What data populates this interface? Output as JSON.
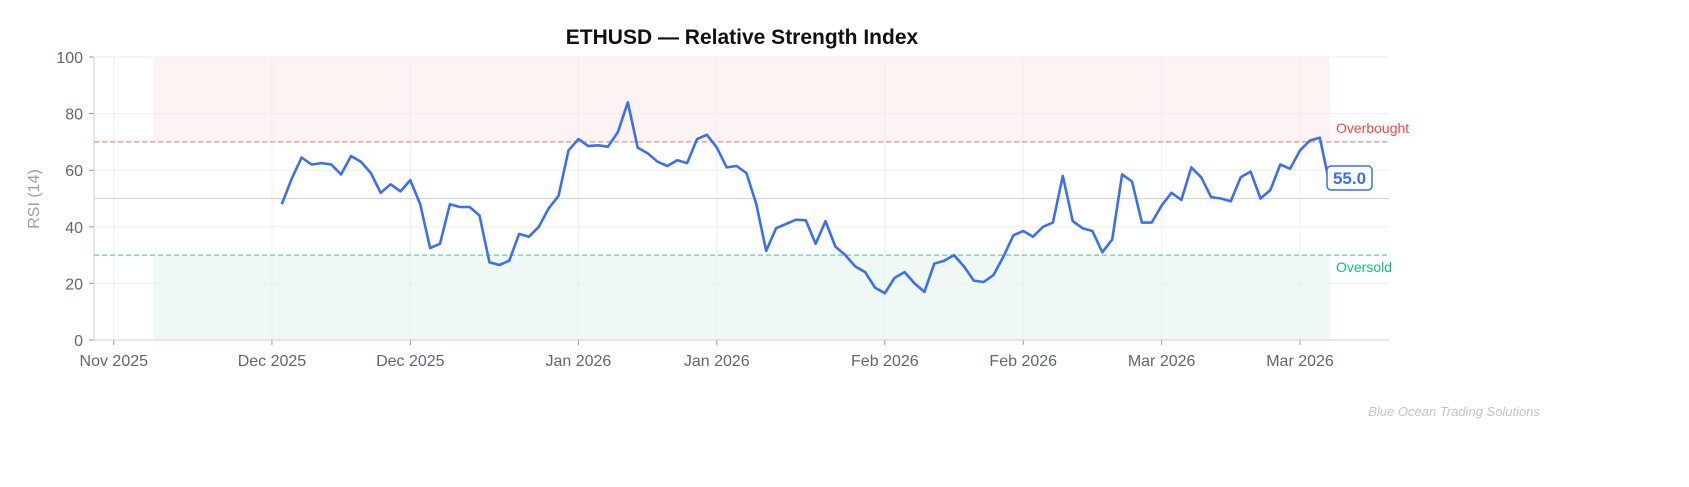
{
  "chart_data": {
    "type": "line",
    "title": "ETHUSD — Relative Strength Index",
    "ylabel": "RSI (14)",
    "xlabel": "",
    "ylim": [
      0,
      100
    ],
    "xlim": [
      "2025-11-13",
      "2026-03-24"
    ],
    "yticks": [
      0,
      20,
      40,
      60,
      80,
      100
    ],
    "xticks": [
      {
        "date": "2025-11-15",
        "label": "Nov 2025"
      },
      {
        "date": "2025-12-01",
        "label": "Dec 2025"
      },
      {
        "date": "2025-12-15",
        "label": "Dec 2025"
      },
      {
        "date": "2026-01-01",
        "label": "Jan 2026"
      },
      {
        "date": "2026-01-15",
        "label": "Jan 2026"
      },
      {
        "date": "2026-02-01",
        "label": "Feb 2026"
      },
      {
        "date": "2026-02-15",
        "label": "Feb 2026"
      },
      {
        "date": "2026-03-01",
        "label": "Mar 2026"
      },
      {
        "date": "2026-03-15",
        "label": "Mar 2026"
      }
    ],
    "grid": true,
    "zones": {
      "overbought": {
        "level": 70,
        "label": "Overbought",
        "color": "#f08080",
        "from": 70,
        "to": 100
      },
      "oversold": {
        "level": 30,
        "label": "Oversold",
        "color": "#10b981",
        "from": 0,
        "to": 30
      },
      "midline": 50,
      "span": [
        "2025-11-19",
        "2026-03-18"
      ]
    },
    "series": [
      {
        "color": "#3b6ff0",
        "points": [
          [
            "2025-12-02",
            48
          ],
          [
            "2025-12-03",
            57
          ],
          [
            "2025-12-04",
            64.5
          ],
          [
            "2025-12-05",
            62
          ],
          [
            "2025-12-06",
            62.5
          ],
          [
            "2025-12-07",
            62
          ],
          [
            "2025-12-08",
            58.5
          ],
          [
            "2025-12-09",
            65
          ],
          [
            "2025-12-10",
            63
          ],
          [
            "2025-12-11",
            59
          ],
          [
            "2025-12-12",
            52
          ],
          [
            "2025-12-13",
            55
          ],
          [
            "2025-12-14",
            52.5
          ],
          [
            "2025-12-15",
            56.5
          ],
          [
            "2025-12-16",
            48
          ],
          [
            "2025-12-17",
            32.5
          ],
          [
            "2025-12-18",
            34
          ],
          [
            "2025-12-19",
            48
          ],
          [
            "2025-12-20",
            47
          ],
          [
            "2025-12-21",
            47
          ],
          [
            "2025-12-22",
            44
          ],
          [
            "2025-12-23",
            27.5
          ],
          [
            "2025-12-24",
            26.5
          ],
          [
            "2025-12-25",
            28
          ],
          [
            "2025-12-26",
            37.5
          ],
          [
            "2025-12-27",
            36.5
          ],
          [
            "2025-12-28",
            40
          ],
          [
            "2025-12-29",
            46.5
          ],
          [
            "2025-12-30",
            51
          ],
          [
            "2025-12-31",
            67
          ],
          [
            "2026-01-01",
            71
          ],
          [
            "2026-01-02",
            68.5
          ],
          [
            "2026-01-03",
            68.8
          ],
          [
            "2026-01-04",
            68.3
          ],
          [
            "2026-01-05",
            73.5
          ],
          [
            "2026-01-06",
            84
          ],
          [
            "2026-01-07",
            68
          ],
          [
            "2026-01-08",
            66
          ],
          [
            "2026-01-09",
            63
          ],
          [
            "2026-01-10",
            61.5
          ],
          [
            "2026-01-11",
            63.5
          ],
          [
            "2026-01-12",
            62.5
          ],
          [
            "2026-01-13",
            71
          ],
          [
            "2026-01-14",
            72.5
          ],
          [
            "2026-01-15",
            68
          ],
          [
            "2026-01-16",
            61
          ],
          [
            "2026-01-17",
            61.5
          ],
          [
            "2026-01-18",
            59
          ],
          [
            "2026-01-19",
            48
          ],
          [
            "2026-01-20",
            31.5
          ],
          [
            "2026-01-21",
            39.5
          ],
          [
            "2026-01-22",
            41
          ],
          [
            "2026-01-23",
            42.5
          ],
          [
            "2026-01-24",
            42.3
          ],
          [
            "2026-01-25",
            34
          ],
          [
            "2026-01-26",
            42
          ],
          [
            "2026-01-27",
            33
          ],
          [
            "2026-01-28",
            30
          ],
          [
            "2026-01-29",
            26
          ],
          [
            "2026-01-30",
            24
          ],
          [
            "2026-01-31",
            18.5
          ],
          [
            "2026-02-01",
            16.5
          ],
          [
            "2026-02-02",
            22
          ],
          [
            "2026-02-03",
            24
          ],
          [
            "2026-02-04",
            20
          ],
          [
            "2026-02-05",
            17
          ],
          [
            "2026-02-06",
            27
          ],
          [
            "2026-02-07",
            28
          ],
          [
            "2026-02-08",
            30
          ],
          [
            "2026-02-09",
            26
          ],
          [
            "2026-02-10",
            21
          ],
          [
            "2026-02-11",
            20.5
          ],
          [
            "2026-02-12",
            23
          ],
          [
            "2026-02-13",
            29.5
          ],
          [
            "2026-02-14",
            37
          ],
          [
            "2026-02-15",
            38.5
          ],
          [
            "2026-02-16",
            36.5
          ],
          [
            "2026-02-17",
            40
          ],
          [
            "2026-02-18",
            41.5
          ],
          [
            "2026-02-19",
            58
          ],
          [
            "2026-02-20",
            42
          ],
          [
            "2026-02-21",
            39.5
          ],
          [
            "2026-02-22",
            38.5
          ],
          [
            "2026-02-23",
            31
          ],
          [
            "2026-02-24",
            35.5
          ],
          [
            "2026-02-25",
            58.5
          ],
          [
            "2026-02-26",
            56
          ],
          [
            "2026-02-27",
            41.5
          ],
          [
            "2026-02-28",
            41.5
          ],
          [
            "2026-03-01",
            47.5
          ],
          [
            "2026-03-02",
            52
          ],
          [
            "2026-03-03",
            49.5
          ],
          [
            "2026-03-04",
            61
          ],
          [
            "2026-03-05",
            57.5
          ],
          [
            "2026-03-06",
            50.5
          ],
          [
            "2026-03-07",
            50
          ],
          [
            "2026-03-08",
            49
          ],
          [
            "2026-03-09",
            57.5
          ],
          [
            "2026-03-10",
            59.5
          ],
          [
            "2026-03-11",
            50
          ],
          [
            "2026-03-12",
            53
          ],
          [
            "2026-03-13",
            62
          ],
          [
            "2026-03-14",
            60.5
          ],
          [
            "2026-03-15",
            67
          ],
          [
            "2026-03-16",
            70.5
          ],
          [
            "2026-03-17",
            71.5
          ],
          [
            "2026-03-18",
            55
          ]
        ]
      }
    ],
    "last_value_label": "55.0",
    "watermark": "Blue Ocean Trading Solutions"
  }
}
